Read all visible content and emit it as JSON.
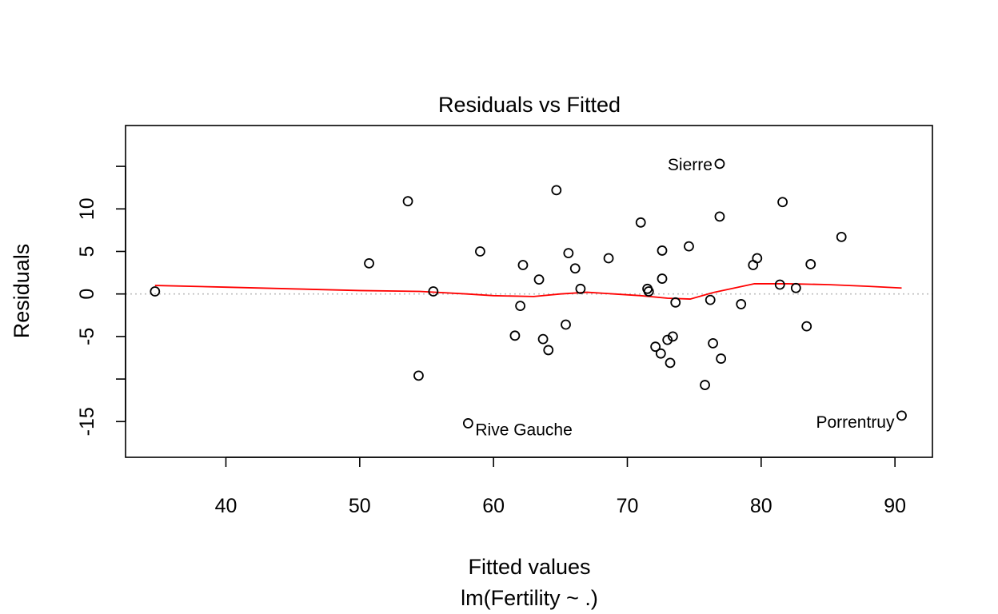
{
  "chart_data": {
    "type": "scatter",
    "title": "Residuals vs Fitted",
    "xlabel": "Fitted values",
    "sublabel": "lm(Fertility ~ .)",
    "ylabel": "Residuals",
    "xlim": [
      32.5,
      92.8
    ],
    "ylim": [
      -19.2,
      19.8
    ],
    "x_ticks": [
      {
        "value": 40,
        "label": "40"
      },
      {
        "value": 50,
        "label": "50"
      },
      {
        "value": 60,
        "label": "60"
      },
      {
        "value": 70,
        "label": "70"
      },
      {
        "value": 80,
        "label": "80"
      },
      {
        "value": 90,
        "label": "90"
      }
    ],
    "y_ticks": [
      {
        "value": -15,
        "label": "-15"
      },
      {
        "value": -10,
        "label": ""
      },
      {
        "value": -5,
        "label": "-5"
      },
      {
        "value": 0,
        "label": "0"
      },
      {
        "value": 5,
        "label": "5"
      },
      {
        "value": 10,
        "label": "10"
      },
      {
        "value": 15,
        "label": ""
      }
    ],
    "reference_line": {
      "y": 0,
      "style": "dotted",
      "color": "#bebebe"
    },
    "point_color": "#000000",
    "smooth_color": "#ff0000",
    "points": [
      [
        34.7,
        0.3
      ],
      [
        50.7,
        3.6
      ],
      [
        53.6,
        10.9
      ],
      [
        54.4,
        -9.6
      ],
      [
        55.5,
        0.3
      ],
      [
        58.1,
        -15.2
      ],
      [
        59.0,
        5.0
      ],
      [
        61.6,
        -4.9
      ],
      [
        62.0,
        -1.4
      ],
      [
        62.2,
        3.4
      ],
      [
        63.4,
        1.7
      ],
      [
        63.7,
        -5.3
      ],
      [
        64.1,
        -6.6
      ],
      [
        64.7,
        12.2
      ],
      [
        65.4,
        -3.6
      ],
      [
        65.6,
        4.8
      ],
      [
        66.1,
        3.0
      ],
      [
        66.5,
        0.6
      ],
      [
        68.6,
        4.2
      ],
      [
        71.0,
        8.4
      ],
      [
        71.5,
        0.6
      ],
      [
        71.6,
        0.3
      ],
      [
        72.1,
        -6.2
      ],
      [
        72.5,
        -7.0
      ],
      [
        72.6,
        5.1
      ],
      [
        72.6,
        1.8
      ],
      [
        73.0,
        -5.4
      ],
      [
        73.2,
        -8.1
      ],
      [
        73.4,
        -5.0
      ],
      [
        73.6,
        -1.0
      ],
      [
        74.6,
        5.6
      ],
      [
        75.8,
        -10.7
      ],
      [
        76.2,
        -0.7
      ],
      [
        76.4,
        -5.8
      ],
      [
        76.9,
        9.1
      ],
      [
        77.0,
        -7.6
      ],
      [
        76.9,
        15.3
      ],
      [
        78.5,
        -1.2
      ],
      [
        79.4,
        3.4
      ],
      [
        79.7,
        4.2
      ],
      [
        81.4,
        1.1
      ],
      [
        81.6,
        10.8
      ],
      [
        82.6,
        0.7
      ],
      [
        83.4,
        -3.8
      ],
      [
        83.7,
        3.5
      ],
      [
        86.0,
        6.7
      ],
      [
        90.5,
        -14.3
      ]
    ],
    "smooth_line": [
      [
        34.7,
        1.0
      ],
      [
        40,
        0.8
      ],
      [
        45,
        0.6
      ],
      [
        50,
        0.4
      ],
      [
        54.5,
        0.3
      ],
      [
        58,
        0.0
      ],
      [
        60,
        -0.2
      ],
      [
        63,
        -0.3
      ],
      [
        65,
        0.0
      ],
      [
        67,
        0.2
      ],
      [
        69,
        0.0
      ],
      [
        71,
        -0.2
      ],
      [
        73,
        -0.5
      ],
      [
        74.7,
        -0.6
      ],
      [
        76.5,
        0.2
      ],
      [
        79.5,
        1.2
      ],
      [
        82,
        1.2
      ],
      [
        85,
        1.1
      ],
      [
        88,
        0.9
      ],
      [
        90.5,
        0.7
      ]
    ],
    "annotations": [
      {
        "label": "Sierre",
        "x": 76.9,
        "y": 15.3,
        "anchor": "end"
      },
      {
        "label": "Rive Gauche",
        "x": 58.1,
        "y": -15.2,
        "anchor": "start"
      },
      {
        "label": "Porrentruy",
        "x": 90.5,
        "y": -14.3,
        "anchor": "end"
      }
    ]
  }
}
